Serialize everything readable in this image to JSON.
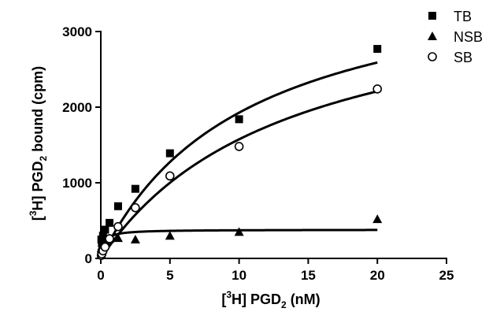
{
  "chart_data": {
    "type": "scatter",
    "xlabel": {
      "prefix": "[",
      "sup": "3",
      "mid": "H] PGD",
      "sub": "2",
      "suffix": " (nM)"
    },
    "ylabel": {
      "prefix": "[",
      "sup": "3",
      "mid": "H] PGD",
      "sub": "2",
      "suffix": " bound (cpm)"
    },
    "xlim": [
      0,
      25
    ],
    "ylim": [
      0,
      3000
    ],
    "xticks": [
      0,
      5,
      10,
      15,
      20,
      25
    ],
    "yticks": [
      0,
      1000,
      2000,
      3000
    ],
    "grid": false,
    "legend_position": "top-right",
    "series": [
      {
        "name": "TB",
        "marker": "square",
        "points": [
          [
            0.04,
            250
          ],
          [
            0.08,
            200
          ],
          [
            0.16,
            300
          ],
          [
            0.31,
            380
          ],
          [
            0.63,
            470
          ],
          [
            1.25,
            690
          ],
          [
            2.5,
            920
          ],
          [
            5,
            1390
          ],
          [
            10,
            1840
          ],
          [
            20,
            2770
          ]
        ],
        "fit": {
          "bmax": 3950,
          "kd": 10.5
        }
      },
      {
        "name": "NSB",
        "marker": "triangle",
        "points": [
          [
            0.04,
            130
          ],
          [
            0.08,
            160
          ],
          [
            0.16,
            190
          ],
          [
            0.31,
            240
          ],
          [
            0.63,
            260
          ],
          [
            1.25,
            270
          ],
          [
            2.5,
            250
          ],
          [
            5,
            300
          ],
          [
            10,
            350
          ],
          [
            20,
            520
          ]
        ],
        "fit": {
          "bmax": 380,
          "kd": 0.22
        }
      },
      {
        "name": "SB",
        "marker": "open-circle",
        "points": [
          [
            0.04,
            40
          ],
          [
            0.08,
            60
          ],
          [
            0.16,
            100
          ],
          [
            0.31,
            150
          ],
          [
            0.63,
            260
          ],
          [
            1.25,
            420
          ],
          [
            2.5,
            670
          ],
          [
            5,
            1090
          ],
          [
            10,
            1480
          ],
          [
            20,
            2240
          ]
        ],
        "fit": {
          "bmax": 3700,
          "kd": 13.5
        }
      }
    ]
  }
}
